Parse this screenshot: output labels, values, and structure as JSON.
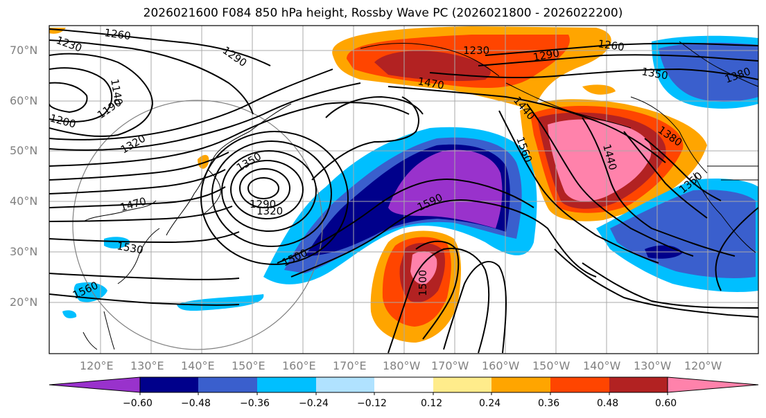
{
  "title": "2026021600 F084 850 hPa height, Rossby Wave PC (2026021800 - 2026022200)",
  "lat_labels": [
    "70°N",
    "60°N",
    "50°N",
    "40°N",
    "30°N",
    "20°N"
  ],
  "lon_labels": [
    "120°E",
    "130°E",
    "140°E",
    "150°E",
    "160°E",
    "170°E",
    "180°W",
    "170°W",
    "160°W",
    "150°W",
    "140°W",
    "130°W",
    "120°W"
  ],
  "colorbar": {
    "ticks": [
      "−0.60",
      "−0.48",
      "−0.36",
      "−0.24",
      "−0.12",
      "0.12",
      "0.24",
      "0.36",
      "0.48",
      "0.60"
    ],
    "colors": [
      "#9932cc",
      "#00008b",
      "#3a5fcd",
      "#00bfff",
      "#b0e2ff",
      "#ffffff",
      "#ffec8b",
      "#ffa500",
      "#ff4500",
      "#b22222",
      "#ff82ab"
    ]
  },
  "contour_labels": [
    "1260",
    "1230",
    "1290",
    "1140",
    "1200",
    "1190",
    "1320",
    "1350",
    "1290",
    "1320",
    "1470",
    "1530",
    "1560",
    "1230",
    "1290",
    "1260",
    "1350",
    "1380",
    "1470",
    "1440",
    "1560",
    "1380",
    "1440",
    "1350",
    "1500",
    "1500",
    "1590"
  ]
}
